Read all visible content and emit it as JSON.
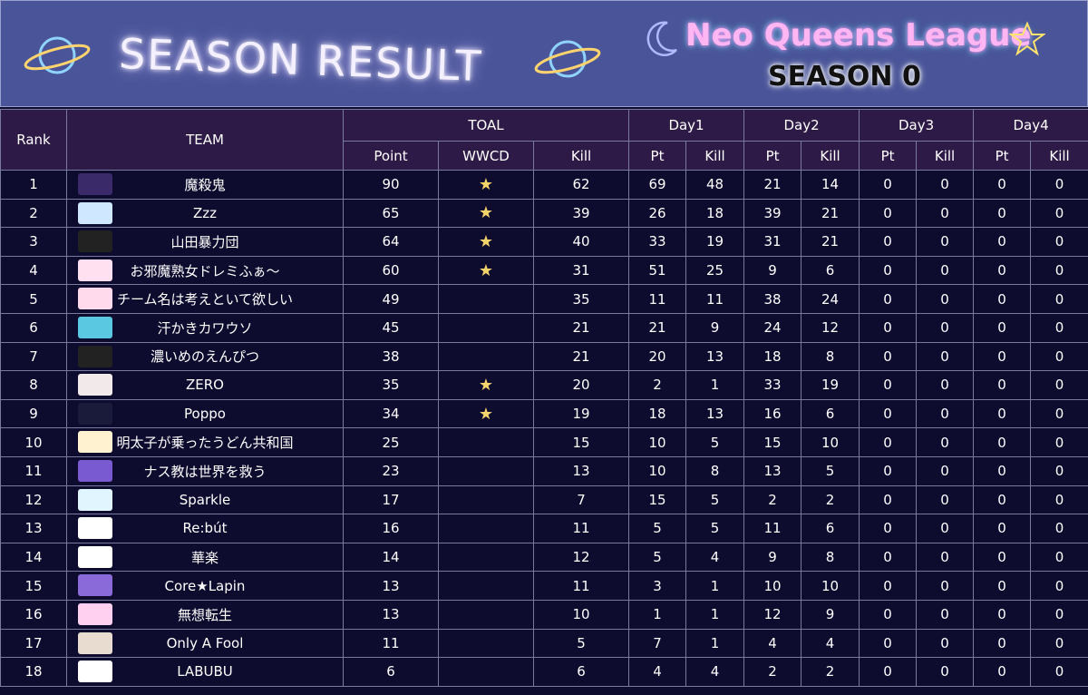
{
  "header": {
    "title": "SEASON RESULT",
    "league": "Neo Queens League",
    "season": "SEASON 0"
  },
  "table": {
    "rank_header": "Rank",
    "team_header": "TEAM",
    "group_headers": [
      "TOAL",
      "Day1",
      "Day2",
      "Day3",
      "Day4"
    ],
    "sub_headers": [
      "Point",
      "WWCD",
      "Kill",
      "Pt",
      "Kill",
      "Pt",
      "Kill",
      "Pt",
      "Kill",
      "Pt",
      "Kill"
    ],
    "rows": [
      [
        1,
        "魔殺鬼",
        90,
        "★",
        62,
        69,
        48,
        21,
        14,
        0,
        0,
        0,
        0
      ],
      [
        2,
        "Zzz",
        65,
        "★",
        39,
        26,
        18,
        39,
        21,
        0,
        0,
        0,
        0
      ],
      [
        3,
        "山田暴力団",
        64,
        "★",
        40,
        33,
        19,
        31,
        21,
        0,
        0,
        0,
        0
      ],
      [
        4,
        "お邪魔熟女ドレミふぁ～",
        60,
        "★",
        31,
        51,
        25,
        9,
        6,
        0,
        0,
        0,
        0
      ],
      [
        5,
        "チーム名は考えといて欲しい",
        49,
        null,
        35,
        11,
        11,
        38,
        24,
        0,
        0,
        0,
        0
      ],
      [
        6,
        "汗かきカワウソ",
        45,
        null,
        21,
        21,
        9,
        24,
        12,
        0,
        0,
        0,
        0
      ],
      [
        7,
        "濃いめのえんぴつ",
        38,
        null,
        21,
        20,
        13,
        18,
        8,
        0,
        0,
        0,
        0
      ],
      [
        8,
        "ZERO",
        35,
        "★",
        20,
        2,
        1,
        33,
        19,
        0,
        0,
        0,
        0
      ],
      [
        9,
        "Poppo",
        34,
        "★",
        19,
        18,
        13,
        16,
        6,
        0,
        0,
        0,
        0
      ],
      [
        10,
        "明太子が乗ったうどん共和国",
        25,
        null,
        15,
        10,
        5,
        15,
        10,
        0,
        0,
        0,
        0
      ],
      [
        11,
        "ナス教は世界を救う",
        23,
        null,
        13,
        10,
        8,
        13,
        5,
        0,
        0,
        0,
        0
      ],
      [
        12,
        "Sparkle",
        17,
        null,
        7,
        15,
        5,
        2,
        2,
        0,
        0,
        0,
        0
      ],
      [
        13,
        "Re:bút",
        16,
        null,
        11,
        5,
        5,
        11,
        6,
        0,
        0,
        0,
        0
      ],
      [
        14,
        "華楽",
        14,
        null,
        12,
        5,
        4,
        9,
        8,
        0,
        0,
        0,
        0
      ],
      [
        15,
        "Core★Lapin",
        13,
        null,
        11,
        3,
        1,
        10,
        10,
        0,
        0,
        0,
        0
      ],
      [
        16,
        "無想転生",
        13,
        null,
        10,
        1,
        1,
        12,
        9,
        0,
        0,
        0,
        0
      ],
      [
        17,
        "Only A Fool",
        11,
        null,
        5,
        7,
        1,
        4,
        4,
        0,
        0,
        0,
        0
      ],
      [
        18,
        "LABUBU",
        6,
        null,
        6,
        4,
        4,
        2,
        2,
        0,
        0,
        0,
        0
      ]
    ]
  }
}
